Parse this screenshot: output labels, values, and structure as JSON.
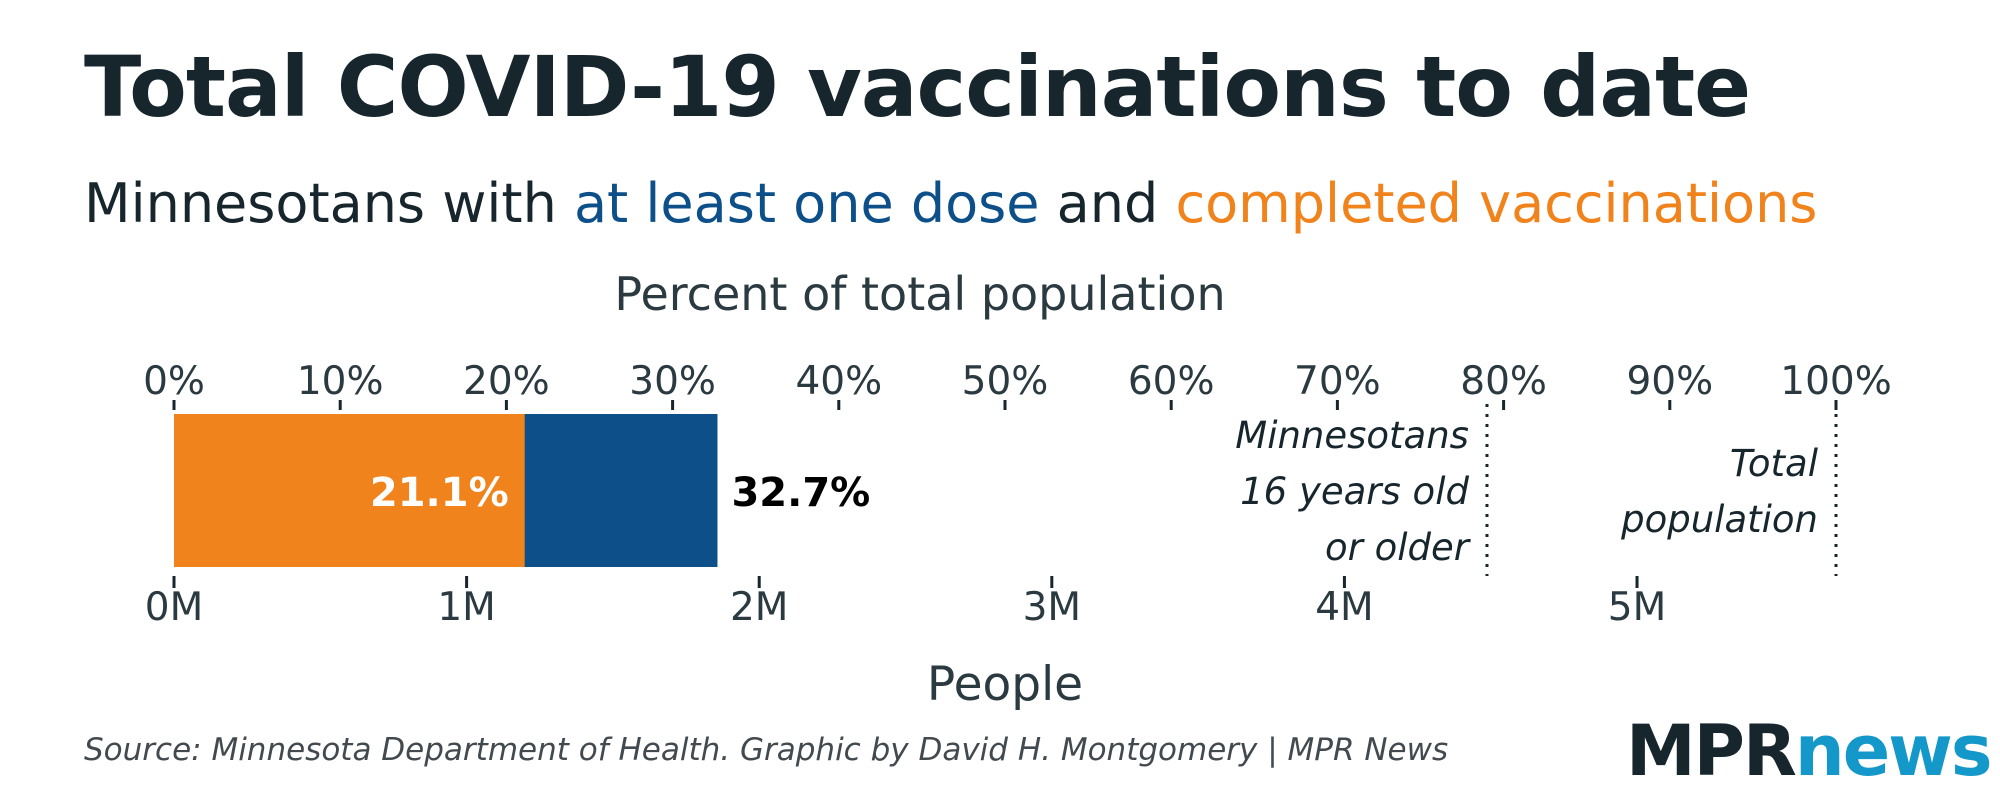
{
  "title": "Total COVID-19 vaccinations to date",
  "subtitle": {
    "prefix": "Minnesotans with ",
    "first_dose": "at least one dose",
    "middle": " and ",
    "completed": "completed vaccinations"
  },
  "source": "Source: Minnesota Department of Health. Graphic by David H. Montgomery | MPR News",
  "logo": {
    "part1": "MPR",
    "part2": "news"
  },
  "chart_data": {
    "type": "bar",
    "orientation": "horizontal",
    "stacked": true,
    "top_axis": {
      "label": "Percent of total population",
      "ticks": [
        "0%",
        "10%",
        "20%",
        "30%",
        "40%",
        "50%",
        "60%",
        "70%",
        "80%",
        "90%",
        "100%"
      ],
      "range": [
        0,
        100
      ]
    },
    "bottom_axis": {
      "label": "People",
      "ticks": [
        "0M",
        "1M",
        "2M",
        "3M",
        "4M",
        "5M"
      ],
      "range_millions": [
        0,
        5.68
      ]
    },
    "series": [
      {
        "name": "completed vaccinations",
        "value_percent": 21.1,
        "label": "21.1%",
        "color": "#f0831c"
      },
      {
        "name": "at least one dose",
        "value_percent": 32.7,
        "label": "32.7%",
        "color": "#0c4f89"
      }
    ],
    "reference_lines": [
      {
        "value_percent": 79,
        "label_lines": [
          "Minnesotans",
          "16 years old",
          "or older"
        ]
      },
      {
        "value_percent": 100,
        "label_lines": [
          "Total",
          "population"
        ]
      }
    ],
    "grid": false
  }
}
